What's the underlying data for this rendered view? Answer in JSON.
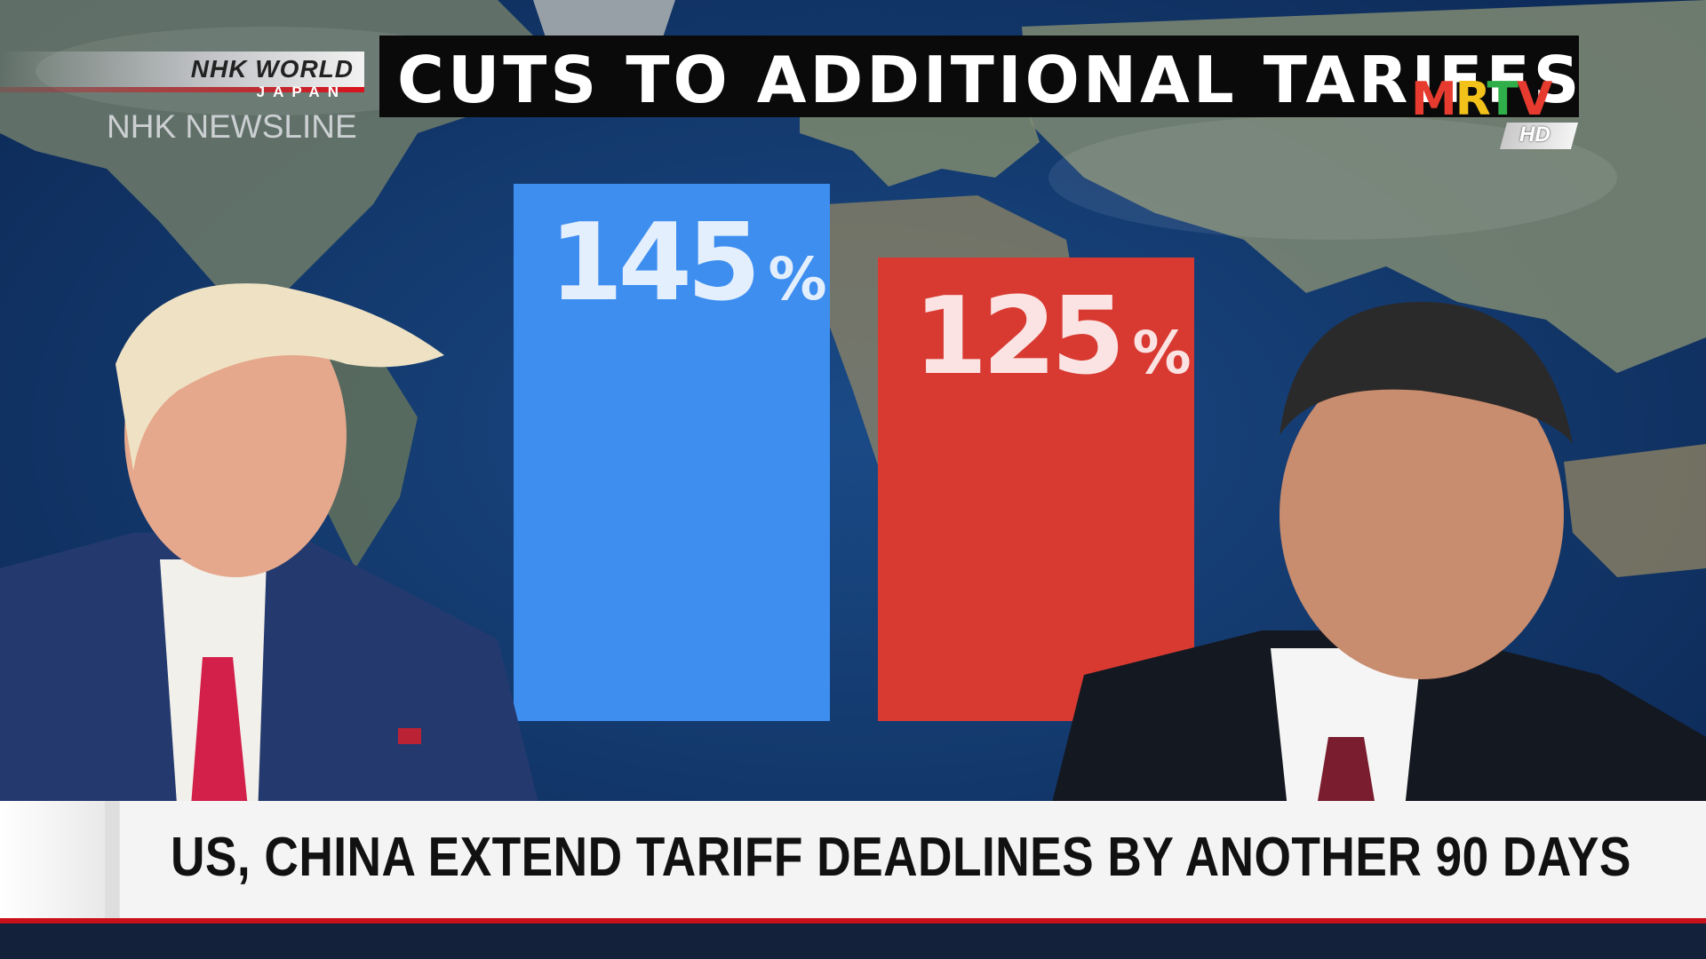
{
  "broadcast": {
    "network_logo": "NHK WORLD",
    "network_logo_sub": "JAPAN",
    "program": "NHK NEWSLINE",
    "channel_logo": "MRTV",
    "channel_logo_badge": "HD"
  },
  "title": "CUTS TO ADDITIONAL TARIFFS",
  "headline": "US, CHINA EXTEND TARIFF DEADLINES BY ANOTHER 90 DAYS",
  "chart_data": {
    "type": "bar",
    "title": "CUTS TO ADDITIONAL TARIFFS",
    "categories": [
      "",
      ""
    ],
    "values": [
      145,
      125
    ],
    "value_labels": [
      "145",
      "125"
    ],
    "unit": "%",
    "colors": [
      "#3e8ef0",
      "#d83a32"
    ],
    "ylim": [
      0,
      145
    ],
    "grid": false,
    "legend": "none"
  },
  "colors": {
    "title_bg": "#0a0a0a",
    "lower_third_bg": "#f4f4f4",
    "accent_red": "#c8101a",
    "map_ocean": "#113768"
  },
  "persons": [
    {
      "side": "left",
      "tie_color": "#d2204a",
      "suit_color": "#243a6e"
    },
    {
      "side": "right",
      "tie_color": "#7a1d2e",
      "suit_color": "#141820"
    }
  ]
}
